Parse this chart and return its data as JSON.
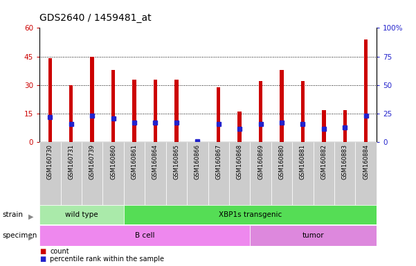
{
  "title": "GDS2640 / 1459481_at",
  "samples": [
    "GSM160730",
    "GSM160731",
    "GSM160739",
    "GSM160860",
    "GSM160861",
    "GSM160864",
    "GSM160865",
    "GSM160866",
    "GSM160867",
    "GSM160868",
    "GSM160869",
    "GSM160880",
    "GSM160881",
    "GSM160882",
    "GSM160883",
    "GSM160884"
  ],
  "counts": [
    44,
    30,
    45,
    38,
    33,
    33,
    33,
    1,
    29,
    16,
    32,
    38,
    32,
    17,
    17,
    54
  ],
  "percentiles": [
    22,
    16,
    23,
    21,
    17,
    17,
    17,
    1,
    16,
    12,
    16,
    17,
    16,
    12,
    13,
    23
  ],
  "ylim_left": [
    0,
    60
  ],
  "ylim_right": [
    0,
    100
  ],
  "yticks_left": [
    0,
    15,
    30,
    45,
    60
  ],
  "ytick_labels_left": [
    "0",
    "15",
    "30",
    "45",
    "60"
  ],
  "yticks_right": [
    0,
    25,
    50,
    75,
    100
  ],
  "ytick_labels_right": [
    "0",
    "25",
    "50",
    "75",
    "100%"
  ],
  "bar_color": "#cc0000",
  "marker_color": "#2222cc",
  "strain_groups": [
    {
      "label": "wild type",
      "start": 0,
      "end": 4,
      "color": "#aaeaaa"
    },
    {
      "label": "XBP1s transgenic",
      "start": 4,
      "end": 16,
      "color": "#55dd55"
    }
  ],
  "specimen_groups": [
    {
      "label": "B cell",
      "start": 0,
      "end": 10,
      "color": "#ee88ee"
    },
    {
      "label": "tumor",
      "start": 10,
      "end": 16,
      "color": "#dd88dd"
    }
  ],
  "strain_label": "strain",
  "specimen_label": "specimen",
  "legend_count_label": "count",
  "legend_pct_label": "percentile rank within the sample",
  "bg_color": "#ffffff",
  "plot_bg_color": "#ffffff",
  "tick_label_bg": "#cccccc",
  "title_fontsize": 10,
  "axis_fontsize": 7.5,
  "bar_width": 0.18
}
